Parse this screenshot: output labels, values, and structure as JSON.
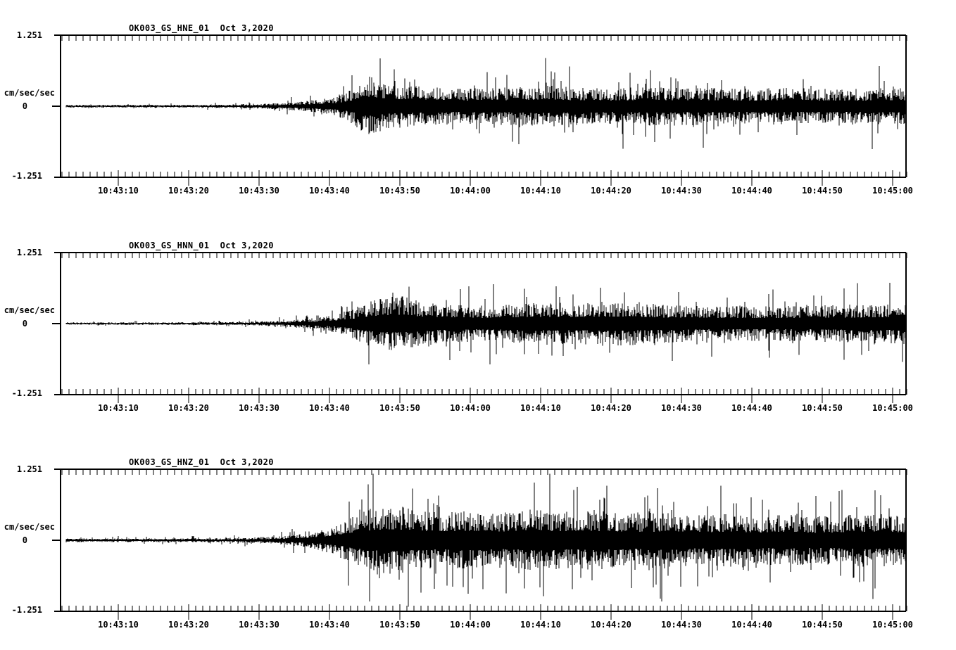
{
  "page": {
    "background": "#ffffff",
    "foreground": "#000000"
  },
  "chart_data": [
    {
      "type": "line",
      "subtype": "seismogram-waveform",
      "title": "OK003_GS_HNE_01  Oct 3,2020",
      "station_channel": "OK003_GS_HNE_01",
      "date": "Oct 3,2020",
      "ylabel": "cm/sec/sec",
      "ylim": [
        -1.251,
        1.251
      ],
      "ytick_labels": [
        "1.251",
        "0",
        "-1.251"
      ],
      "grid": false,
      "legend": false,
      "x_window_seconds_after_10_43_00": [
        1.8,
        122.1
      ],
      "xtick_seconds": [
        10,
        20,
        30,
        40,
        50,
        60,
        70,
        80,
        90,
        100,
        110,
        120
      ],
      "xtick_labels": [
        "10:43:10",
        "10:43:20",
        "10:43:30",
        "10:43:40",
        "10:43:50",
        "10:44:00",
        "10:44:10",
        "10:44:20",
        "10:44:30",
        "10:44:40",
        "10:44:50",
        "10:45:00"
      ],
      "minor_tick_interval_seconds": 1,
      "amplitude_envelope": [
        [
          1.8,
          0.025
        ],
        [
          15,
          0.025
        ],
        [
          25,
          0.028
        ],
        [
          30,
          0.042
        ],
        [
          35,
          0.07
        ],
        [
          38,
          0.11
        ],
        [
          41,
          0.17
        ],
        [
          43,
          0.28
        ],
        [
          44.5,
          0.45
        ],
        [
          46,
          0.5
        ],
        [
          47.5,
          0.42
        ],
        [
          50,
          0.36
        ],
        [
          54,
          0.33
        ],
        [
          58,
          0.3
        ],
        [
          63,
          0.32
        ],
        [
          68,
          0.33
        ],
        [
          71,
          0.36
        ],
        [
          74,
          0.32
        ],
        [
          80,
          0.3
        ],
        [
          86,
          0.33
        ],
        [
          92,
          0.32
        ],
        [
          98,
          0.3
        ],
        [
          104,
          0.31
        ],
        [
          110,
          0.29
        ],
        [
          116,
          0.3
        ],
        [
          122,
          0.31
        ]
      ],
      "spike_probability": 0.07,
      "spike_max": 0.85,
      "seed": 11
    },
    {
      "type": "line",
      "subtype": "seismogram-waveform",
      "title": "OK003_GS_HNN_01  Oct 3,2020",
      "station_channel": "OK003_GS_HNN_01",
      "date": "Oct 3,2020",
      "ylabel": "cm/sec/sec",
      "ylim": [
        -1.251,
        1.251
      ],
      "ytick_labels": [
        "1.251",
        "0",
        "-1.251"
      ],
      "grid": false,
      "legend": false,
      "x_window_seconds_after_10_43_00": [
        1.8,
        122.1
      ],
      "xtick_seconds": [
        10,
        20,
        30,
        40,
        50,
        60,
        70,
        80,
        90,
        100,
        110,
        120
      ],
      "xtick_labels": [
        "10:43:10",
        "10:43:20",
        "10:43:30",
        "10:43:40",
        "10:43:50",
        "10:44:00",
        "10:44:10",
        "10:44:20",
        "10:44:30",
        "10:44:40",
        "10:44:50",
        "10:45:00"
      ],
      "minor_tick_interval_seconds": 1,
      "amplitude_envelope": [
        [
          1.8,
          0.02
        ],
        [
          15,
          0.022
        ],
        [
          25,
          0.026
        ],
        [
          30,
          0.038
        ],
        [
          35,
          0.06
        ],
        [
          38,
          0.1
        ],
        [
          41,
          0.16
        ],
        [
          43.5,
          0.26
        ],
        [
          46,
          0.4
        ],
        [
          48,
          0.44
        ],
        [
          50.5,
          0.46
        ],
        [
          53,
          0.38
        ],
        [
          57,
          0.32
        ],
        [
          62,
          0.3
        ],
        [
          67,
          0.33
        ],
        [
          71,
          0.36
        ],
        [
          75,
          0.34
        ],
        [
          79,
          0.38
        ],
        [
          83,
          0.36
        ],
        [
          88,
          0.32
        ],
        [
          94,
          0.3
        ],
        [
          100,
          0.29
        ],
        [
          106,
          0.3
        ],
        [
          112,
          0.31
        ],
        [
          117,
          0.33
        ],
        [
          122,
          0.35
        ]
      ],
      "spike_probability": 0.07,
      "spike_max": 0.72,
      "seed": 22
    },
    {
      "type": "line",
      "subtype": "seismogram-waveform",
      "title": "OK003_GS_HNZ_01  Oct 3,2020",
      "station_channel": "OK003_GS_HNZ_01",
      "date": "Oct 3,2020",
      "ylabel": "cm/sec/sec",
      "ylim": [
        -1.251,
        1.251
      ],
      "ytick_labels": [
        "1.251",
        "0",
        "-1.251"
      ],
      "grid": false,
      "legend": false,
      "x_window_seconds_after_10_43_00": [
        1.8,
        122.1
      ],
      "xtick_seconds": [
        10,
        20,
        30,
        40,
        50,
        60,
        70,
        80,
        90,
        100,
        110,
        120
      ],
      "xtick_labels": [
        "10:43:10",
        "10:43:20",
        "10:43:30",
        "10:43:40",
        "10:43:50",
        "10:44:00",
        "10:44:10",
        "10:44:20",
        "10:44:30",
        "10:44:40",
        "10:44:50",
        "10:45:00"
      ],
      "minor_tick_interval_seconds": 1,
      "amplitude_envelope": [
        [
          1.8,
          0.028
        ],
        [
          15,
          0.03
        ],
        [
          25,
          0.035
        ],
        [
          30,
          0.05
        ],
        [
          33,
          0.07
        ],
        [
          36,
          0.11
        ],
        [
          39,
          0.18
        ],
        [
          41,
          0.26
        ],
        [
          43,
          0.38
        ],
        [
          45.5,
          0.52
        ],
        [
          48,
          0.58
        ],
        [
          50.5,
          0.55
        ],
        [
          53,
          0.5
        ],
        [
          57,
          0.47
        ],
        [
          61,
          0.5
        ],
        [
          65,
          0.47
        ],
        [
          69,
          0.51
        ],
        [
          73,
          0.48
        ],
        [
          77,
          0.5
        ],
        [
          81,
          0.47
        ],
        [
          85,
          0.44
        ],
        [
          89,
          0.47
        ],
        [
          93,
          0.42
        ],
        [
          97,
          0.46
        ],
        [
          101,
          0.41
        ],
        [
          105,
          0.44
        ],
        [
          109,
          0.4
        ],
        [
          113,
          0.43
        ],
        [
          117,
          0.45
        ],
        [
          122,
          0.42
        ]
      ],
      "spike_probability": 0.12,
      "spike_max": 1.17,
      "seed": 33
    }
  ]
}
